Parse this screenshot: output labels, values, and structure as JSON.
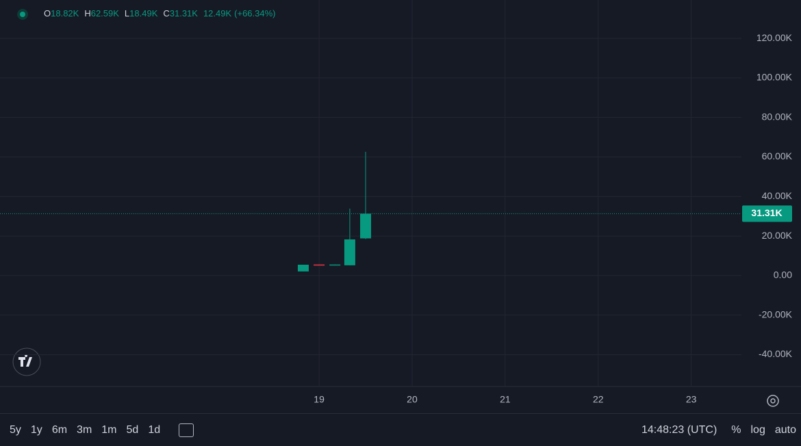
{
  "chart_data": {
    "type": "candlestick",
    "header": {
      "items": [
        {
          "key": "O",
          "text": "18.82K"
        },
        {
          "key": "H",
          "text": "62.59K"
        },
        {
          "key": "L",
          "text": "18.49K"
        },
        {
          "key": "C",
          "text": "31.31K"
        }
      ],
      "change": "12.49K",
      "change_pct": "(+66.34%)"
    },
    "x": [
      18.83,
      19,
      19.17,
      19.33,
      19.5
    ],
    "open": [
      2.1,
      5.6,
      5.3,
      5.2,
      18.82
    ],
    "high": [
      5.5,
      5.6,
      5.6,
      33.9,
      62.59
    ],
    "low": [
      2.1,
      5.4,
      5.3,
      5.2,
      18.49
    ],
    "close": [
      5.5,
      5.4,
      5.6,
      18.3,
      31.31
    ],
    "up_color": "#089981",
    "down_color": "#f23645",
    "last_price": {
      "value": 31.31,
      "label": "31.31K"
    },
    "xlim": [
      15.57,
      23.54
    ],
    "xticks": [
      19,
      20,
      21,
      22,
      23
    ],
    "ylim": [
      -56.1,
      139.4
    ],
    "yticks": [
      {
        "value": -40,
        "label": "-40.00K"
      },
      {
        "value": -20,
        "label": "-20.00K"
      },
      {
        "value": 0,
        "label": "0.00"
      },
      {
        "value": 20,
        "label": "20.00K"
      },
      {
        "value": 40,
        "label": "40.00K"
      },
      {
        "value": 60,
        "label": "60.00K"
      },
      {
        "value": 80,
        "label": "80.00K"
      },
      {
        "value": 100,
        "label": "100.00K"
      },
      {
        "value": 120,
        "label": "120.00K"
      }
    ],
    "grid": true
  },
  "toolbar": {
    "ranges": [
      "5y",
      "1y",
      "6m",
      "3m",
      "1m",
      "5d",
      "1d"
    ],
    "clock": "14:48:23 (UTC)",
    "options": [
      "%",
      "log",
      "auto"
    ]
  }
}
